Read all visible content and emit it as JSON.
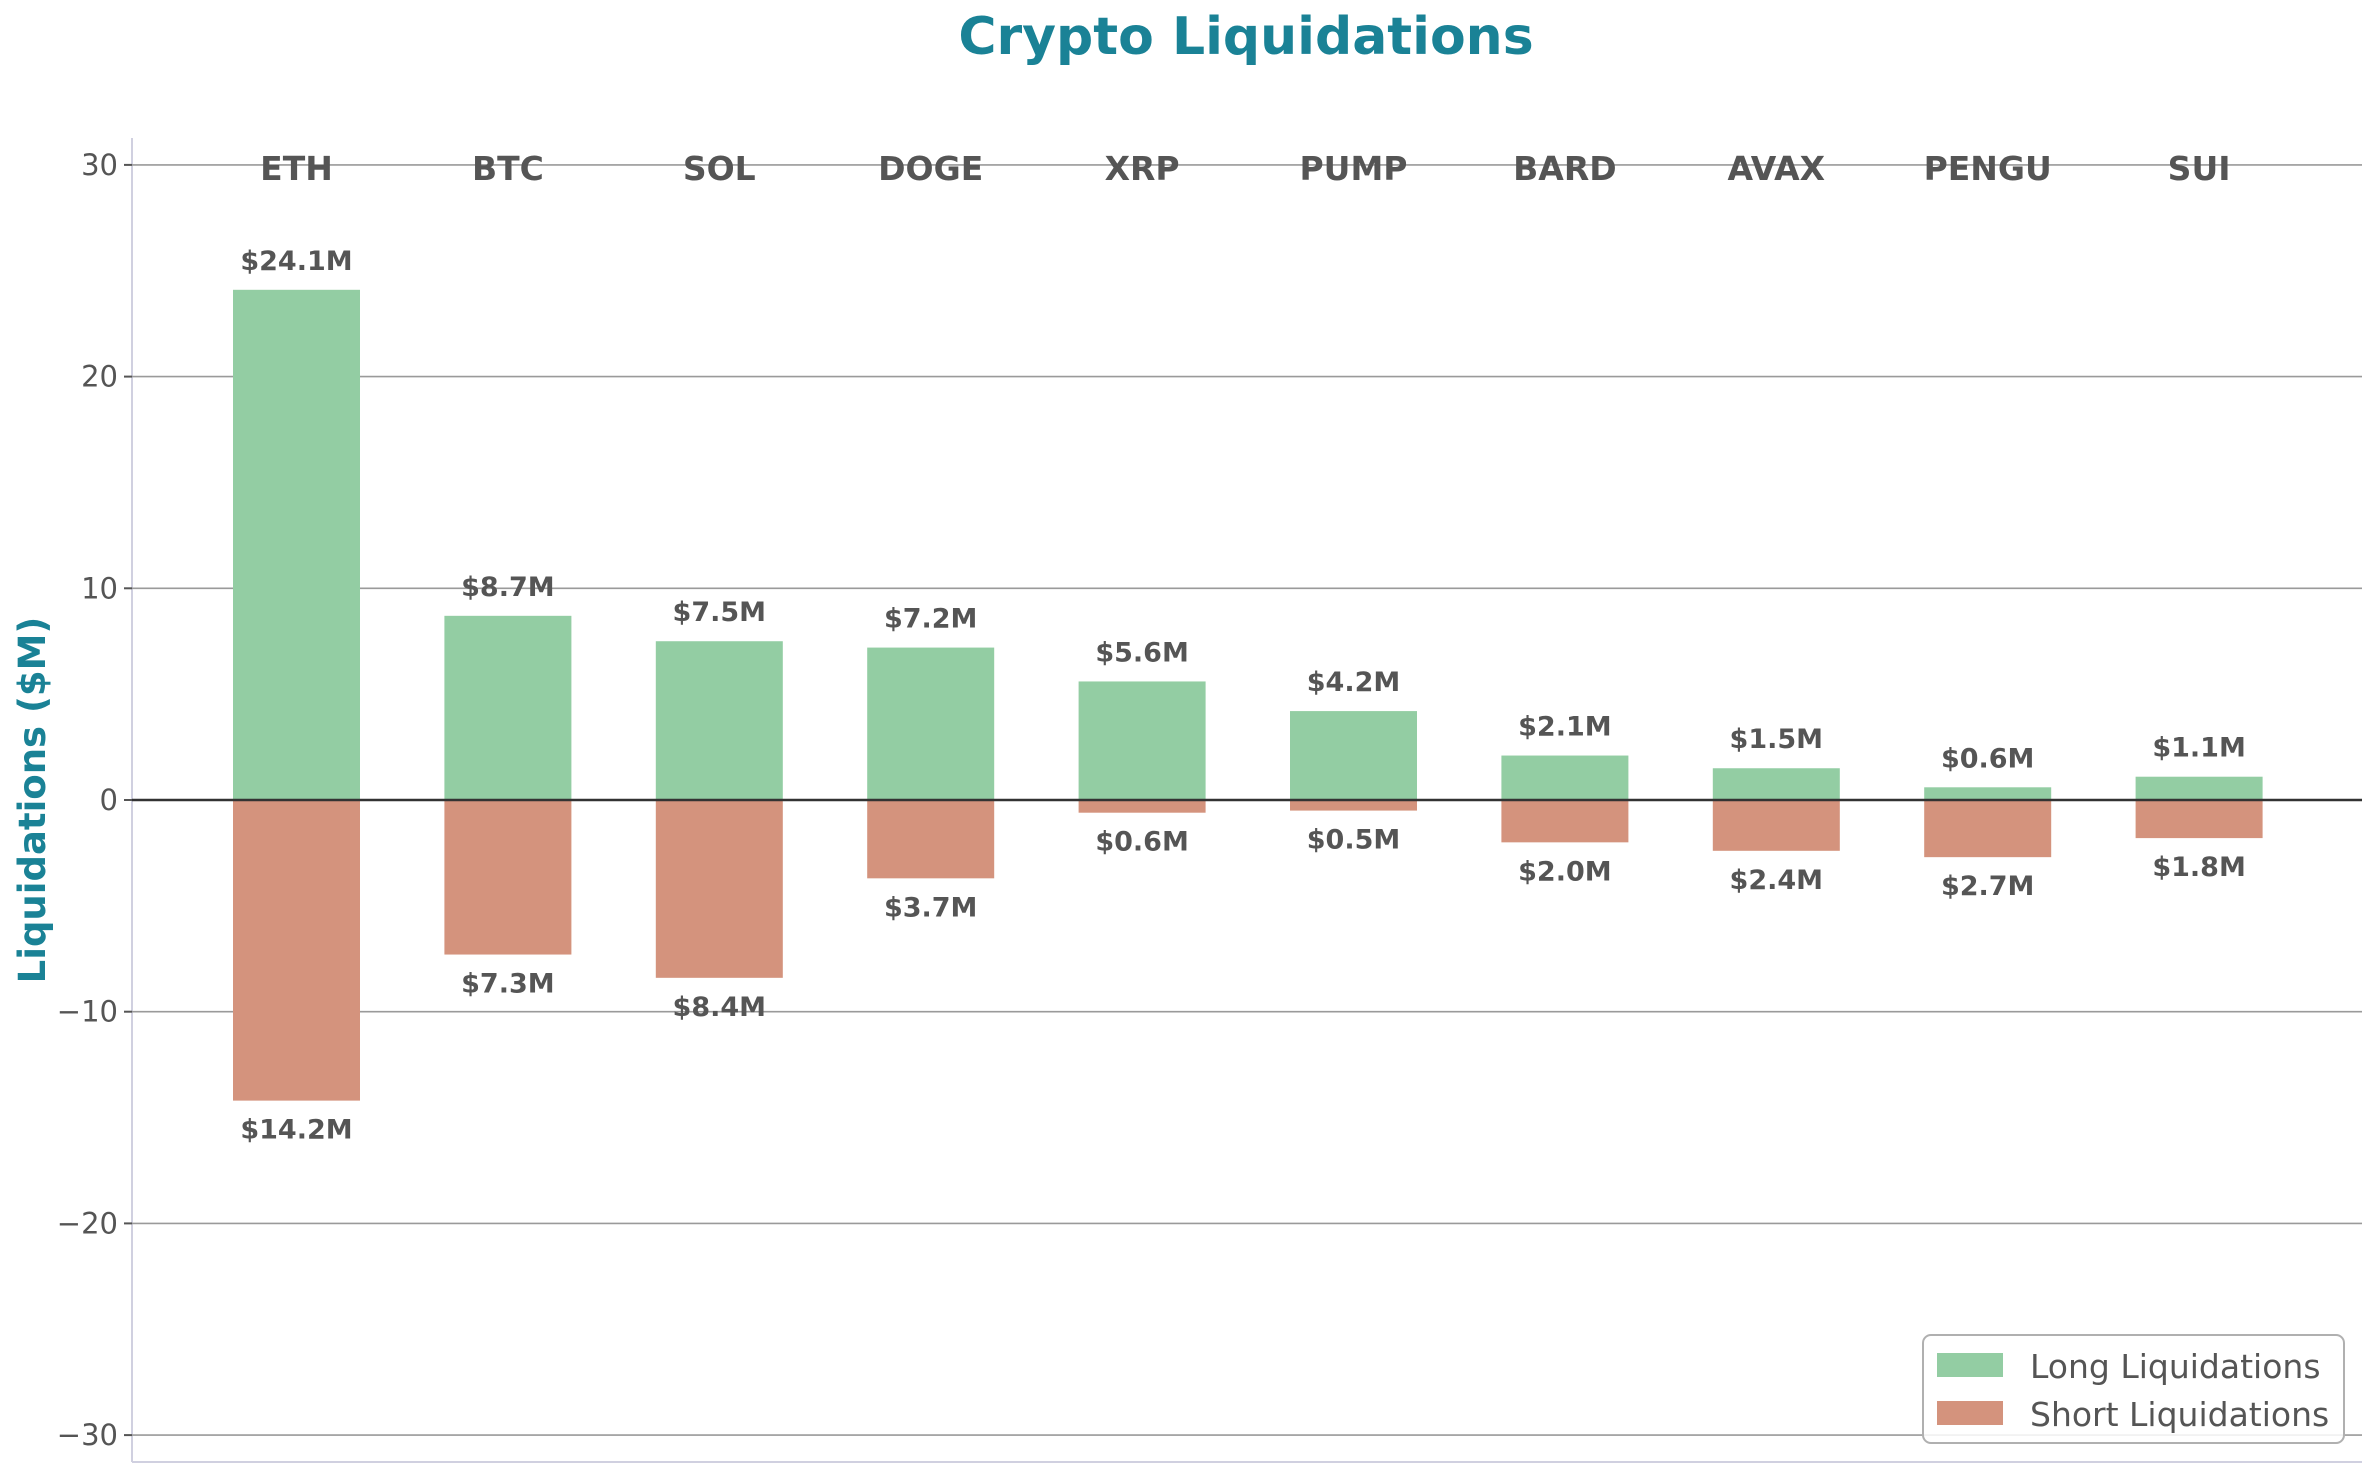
{
  "chart_data": {
    "type": "bar",
    "title": "Crypto Liquidations",
    "xlabel": "",
    "ylabel": "Liquidations ($M)",
    "ylim": [
      -31.3,
      31.3
    ],
    "yticks": [
      30,
      20,
      10,
      0,
      -10,
      -20,
      -30
    ],
    "ytick_labels": [
      "30",
      "20",
      "10",
      "0",
      "−10",
      "−20",
      "−30"
    ],
    "grid": true,
    "legend_position": "bottom-right",
    "categories": [
      "ETH",
      "BTC",
      "SOL",
      "DOGE",
      "XRP",
      "PUMP",
      "BARD",
      "AVAX",
      "PENGU",
      "SUI"
    ],
    "series": [
      {
        "name": "Long Liquidations",
        "color": "#93cda3",
        "values": [
          24.1,
          8.7,
          7.5,
          7.2,
          5.6,
          4.2,
          2.1,
          1.5,
          0.6,
          1.1
        ],
        "labels": [
          "$24.1M",
          "$8.7M",
          "$7.5M",
          "$7.2M",
          "$5.6M",
          "$4.2M",
          "$2.1M",
          "$1.5M",
          "$0.6M",
          "$1.1M"
        ]
      },
      {
        "name": "Short Liquidations",
        "color": "#d4937d",
        "values": [
          -14.2,
          -7.3,
          -8.4,
          -3.7,
          -0.6,
          -0.5,
          -2.0,
          -2.4,
          -2.7,
          -1.8
        ],
        "labels": [
          "$14.2M",
          "$7.3M",
          "$8.4M",
          "$3.7M",
          "$0.6M",
          "$0.5M",
          "$2.0M",
          "$2.4M",
          "$2.7M",
          "$1.8M"
        ]
      }
    ]
  }
}
